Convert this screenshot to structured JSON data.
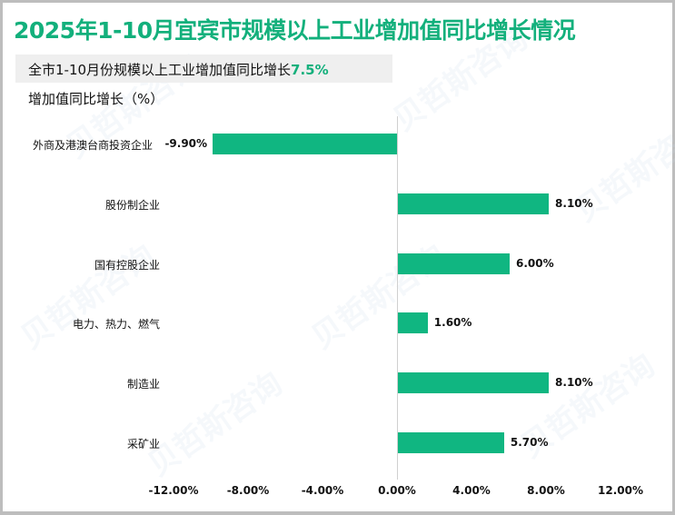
{
  "title": "2025年1-10月宜宾市规模以上工业增加值同比增长情况",
  "subtitle": {
    "text": "全市1-10月份规模以上工业增加值同比增长",
    "highlight": "7.5%"
  },
  "axis_title": "增加值同比增长（%）",
  "watermark": "贝哲斯咨询",
  "colors": {
    "accent": "#13b07c",
    "bar": "#10b681",
    "border": "#bdbdbd",
    "subtitle_bg": "#efefef"
  },
  "chart_data": {
    "type": "bar",
    "orientation": "horizontal",
    "title": "2025年1-10月宜宾市规模以上工业增加值同比增长情况",
    "subtitle": "全市1-10月份规模以上工业增加值同比增长7.5%",
    "ylabel": "增加值同比增长（%）",
    "xlabel": "",
    "categories": [
      "外商及港澳台商投资企业",
      "股份制企业",
      "国有控股企业",
      "电力、热力、燃气",
      "制造业",
      "采矿业"
    ],
    "values": [
      -9.9,
      8.1,
      6.0,
      1.6,
      8.1,
      5.7
    ],
    "value_labels": [
      "-9.90%",
      "8.10%",
      "6.00%",
      "1.60%",
      "8.10%",
      "5.70%"
    ],
    "xlim": [
      -12,
      12
    ],
    "x_ticks": [
      "-12.00%",
      "-8.00%",
      "-4.00%",
      "0.00%",
      "4.00%",
      "8.00%",
      "12.00%"
    ],
    "grid": false,
    "legend": "none"
  }
}
